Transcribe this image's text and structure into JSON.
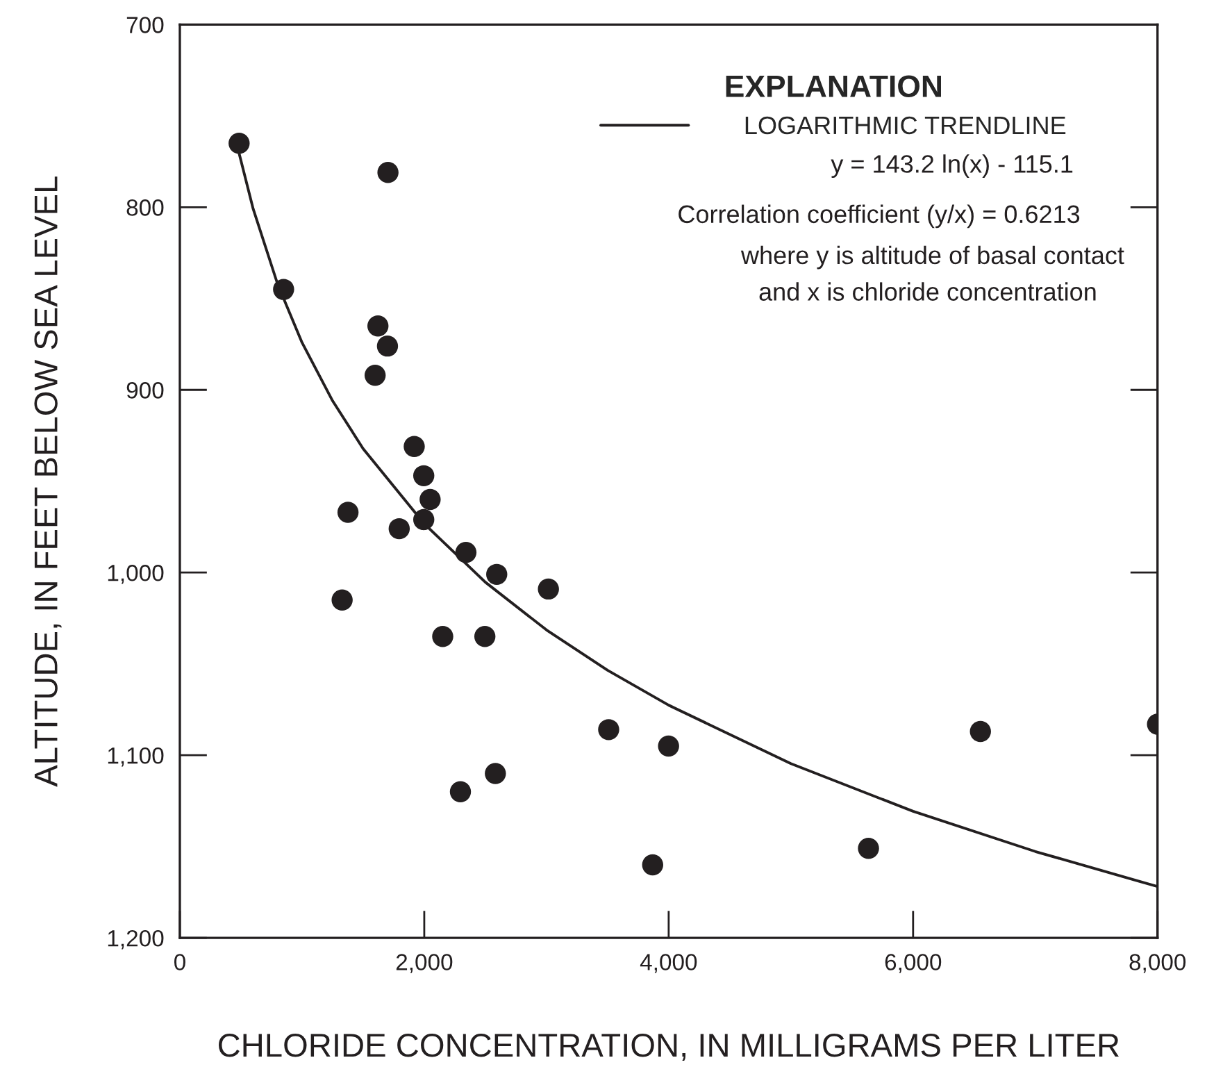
{
  "chart_data": {
    "type": "scatter",
    "xlabel": "CHLORIDE CONCENTRATION, IN MILLIGRAMS PER LITER",
    "ylabel": "ALTITUDE, IN FEET BELOW SEA LEVEL",
    "legend_title": "EXPLANATION",
    "xlim": [
      0,
      8000
    ],
    "xticks": [
      0,
      {
        "value": 2000,
        "label": "2,000"
      },
      {
        "value": 4000,
        "label": "4,000"
      },
      {
        "value": 6000,
        "label": "6,000"
      },
      {
        "value": 8000,
        "label": "8,000"
      }
    ],
    "ylim": [
      1200,
      700
    ],
    "yticks": [
      700,
      800,
      900,
      {
        "value": 1000,
        "label": "1,000"
      },
      {
        "value": 1100,
        "label": "1,100"
      },
      {
        "value": 1200,
        "label": "1,200"
      }
    ],
    "series": [
      {
        "color": "#231f20",
        "marker": "circle",
        "x": [
          485,
          1703,
          849,
          1621,
          1699,
          1598,
          1918,
          1996,
          2048,
          1996,
          1376,
          1795,
          2341,
          2593,
          3016,
          1328,
          2151,
          2496,
          3509,
          3999,
          2582,
          2296,
          3869,
          5635,
          6551,
          8000
        ],
        "values": [
          765,
          781,
          845,
          865,
          876,
          892,
          931,
          947,
          960,
          971,
          967,
          976,
          989,
          1001,
          1009,
          1015,
          1035,
          1035,
          1086,
          1095,
          1110,
          1120,
          1160,
          1151,
          1087,
          1083
        ]
      },
      {
        "type": "line",
        "name": "LOGARITHMIC TRENDLINE",
        "color": "#231f20",
        "marker": "none",
        "line_style": "solid",
        "x": [
          485,
          600,
          800,
          1000,
          1250,
          1500,
          2000,
          2500,
          3000,
          3500,
          4000,
          5000,
          6000,
          7000,
          8000
        ],
        "values": [
          770.5,
          800.9,
          842.1,
          874.1,
          906.0,
          932.2,
          973.3,
          1005.3,
          1031.4,
          1053.5,
          1072.6,
          1104.6,
          1130.7,
          1152.7,
          1171.9
        ]
      }
    ],
    "annotations": [
      "y = 143.2 ln(x) - 115.1",
      "Correlation coefficient (y/x) = 0.6213",
      "where y is altitude of basal contact",
      "and x is chloride concentration"
    ],
    "legend": "top right",
    "grid": false
  }
}
